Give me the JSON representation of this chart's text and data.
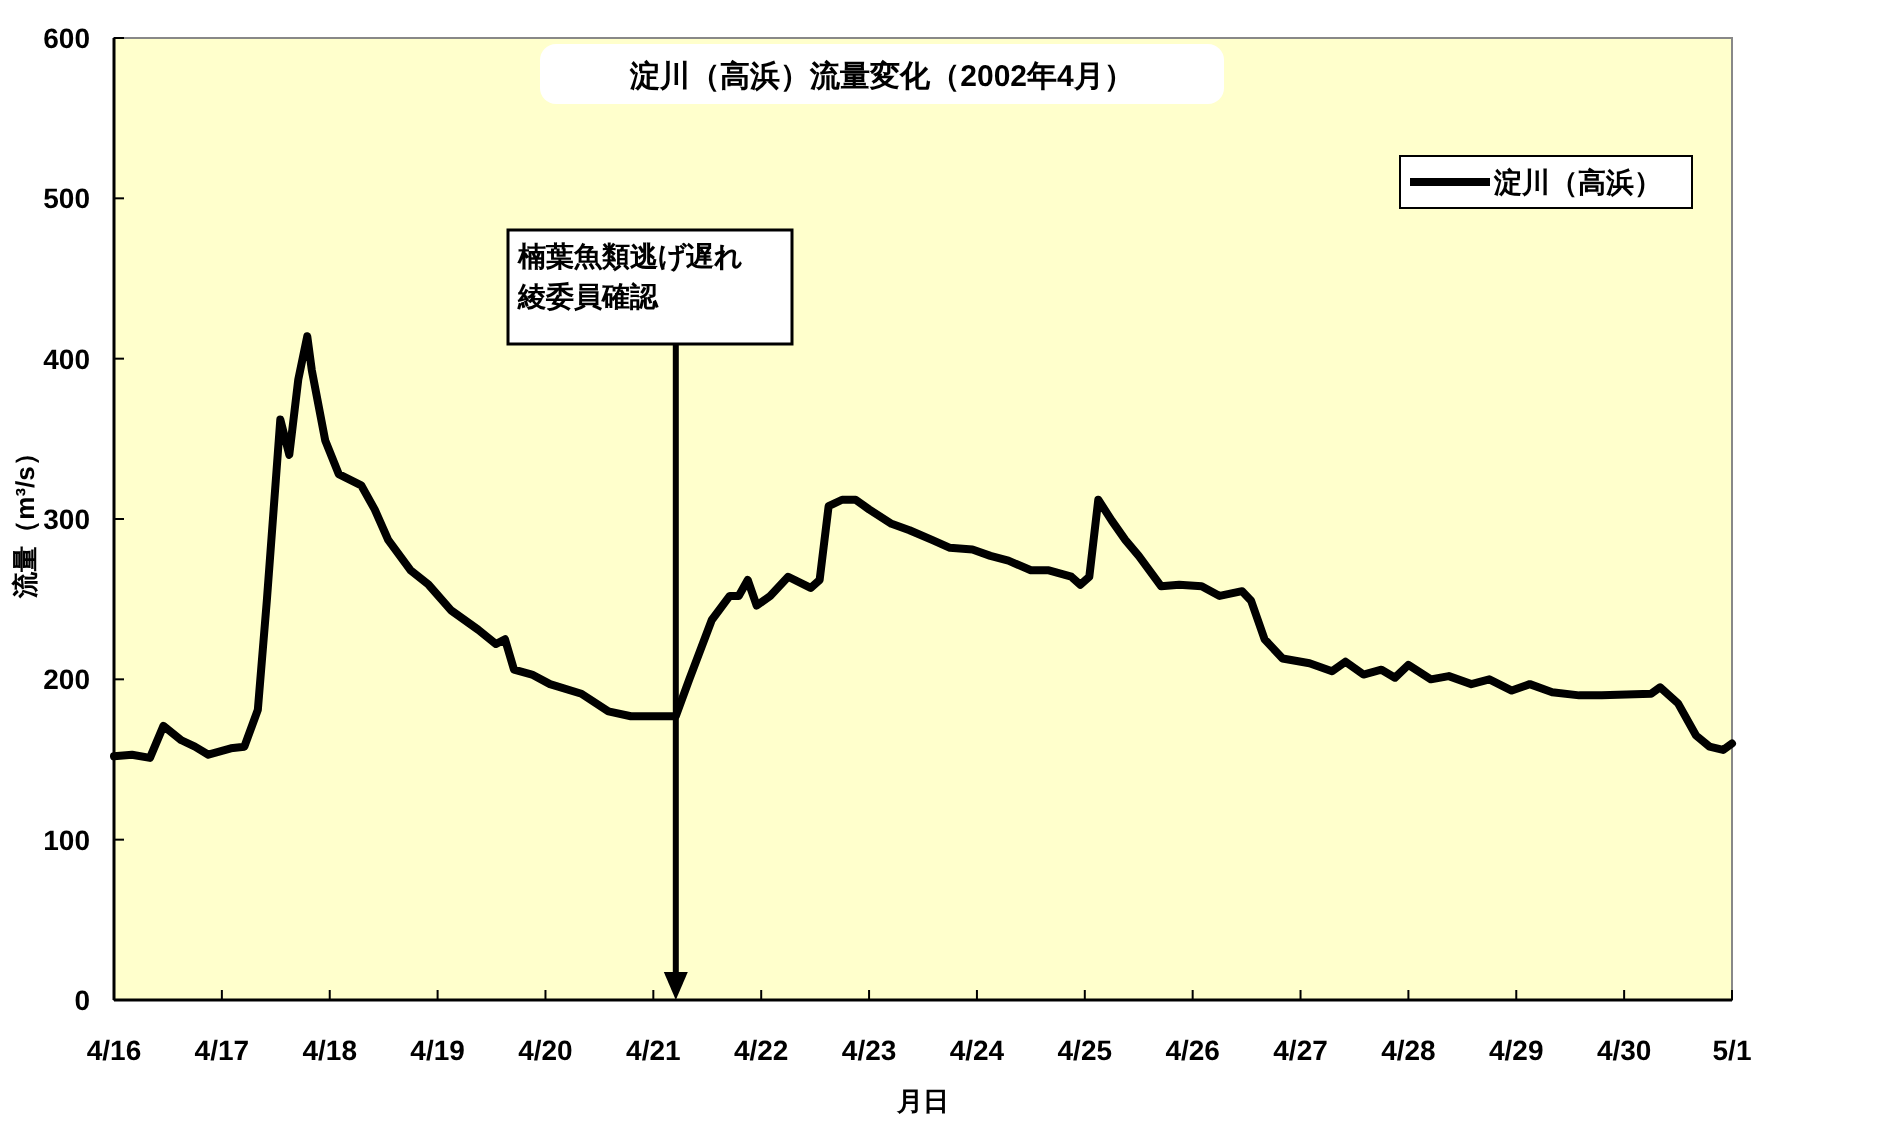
{
  "chart_data": {
    "type": "line",
    "title": "淀川（高浜）流量変化（2002年4月）",
    "xlabel": "月日",
    "ylabel": "流量（m³/s）",
    "x": [
      "2002-04-16T00:00",
      "2002-04-16T04:00",
      "2002-04-16T08:00",
      "2002-04-16T11:00",
      "2002-04-16T15:00",
      "2002-04-16T18:00",
      "2002-04-16T21:00",
      "2002-04-17T02:00",
      "2002-04-17T05:00",
      "2002-04-17T08:00",
      "2002-04-17T10:00",
      "2002-04-17T12:00",
      "2002-04-17T13:00",
      "2002-04-17T15:00",
      "2002-04-17T17:00",
      "2002-04-17T19:00",
      "2002-04-17T20:00",
      "2002-04-17T23:00",
      "2002-04-18T02:00",
      "2002-04-18T07:00",
      "2002-04-18T10:00",
      "2002-04-18T13:00",
      "2002-04-18T18:00",
      "2002-04-18T22:00",
      "2002-04-19T03:00",
      "2002-04-19T09:00",
      "2002-04-19T13:00",
      "2002-04-19T15:00",
      "2002-04-19T17:00",
      "2002-04-19T21:00",
      "2002-04-20T01:00",
      "2002-04-20T08:00",
      "2002-04-20T14:00",
      "2002-04-20T19:00",
      "2002-04-21T02:00",
      "2002-04-21T05:00",
      "2002-04-21T08:00",
      "2002-04-21T13:00",
      "2002-04-21T17:00",
      "2002-04-21T19:00",
      "2002-04-21T21:00",
      "2002-04-21T23:00",
      "2002-04-22T02:00",
      "2002-04-22T06:00",
      "2002-04-22T11:00",
      "2002-04-22T13:00",
      "2002-04-22T15:00",
      "2002-04-22T18:00",
      "2002-04-22T21:00",
      "2002-04-23T00:00",
      "2002-04-23T05:00",
      "2002-04-23T09:00",
      "2002-04-23T14:00",
      "2002-04-23T18:00",
      "2002-04-23T23:00",
      "2002-04-24T03:00",
      "2002-04-24T07:00",
      "2002-04-24T12:00",
      "2002-04-24T16:00",
      "2002-04-24T21:00",
      "2002-04-24T23:00",
      "2002-04-25T01:00",
      "2002-04-25T03:00",
      "2002-04-25T06:00",
      "2002-04-25T09:00",
      "2002-04-25T12:00",
      "2002-04-25T17:00",
      "2002-04-25T21:00",
      "2002-04-26T02:00",
      "2002-04-26T06:00",
      "2002-04-26T11:00",
      "2002-04-26T13:00",
      "2002-04-26T16:00",
      "2002-04-26T20:00",
      "2002-04-27T02:00",
      "2002-04-27T07:00",
      "2002-04-27T10:00",
      "2002-04-27T14:00",
      "2002-04-27T18:00",
      "2002-04-27T21:00",
      "2002-04-28T00:00",
      "2002-04-28T05:00",
      "2002-04-28T09:00",
      "2002-04-28T14:00",
      "2002-04-28T18:00",
      "2002-04-28T23:00",
      "2002-04-29T03:00",
      "2002-04-29T08:00",
      "2002-04-29T14:00",
      "2002-04-29T19:00",
      "2002-04-30T06:00",
      "2002-04-30T08:00",
      "2002-04-30T12:00",
      "2002-04-30T16:00",
      "2002-04-30T19:00",
      "2002-04-30T22:00",
      "2002-05-01T00:00"
    ],
    "series": [
      {
        "name": "淀川（高浜）",
        "color": "#000000",
        "values": [
          152,
          153,
          151,
          171,
          162,
          158,
          153,
          157,
          158,
          181,
          249,
          324,
          362,
          340,
          387,
          414,
          393,
          349,
          328,
          321,
          306,
          287,
          268,
          259,
          243,
          231,
          222,
          225,
          206,
          203,
          197,
          191,
          180,
          177,
          177,
          177,
          200,
          237,
          252,
          252,
          262,
          246,
          252,
          264,
          257,
          262,
          308,
          312,
          312,
          306,
          297,
          293,
          287,
          282,
          281,
          277,
          274,
          268,
          268,
          264,
          259,
          264,
          312,
          299,
          287,
          277,
          258,
          259,
          258,
          252,
          255,
          249,
          225,
          213,
          210,
          205,
          211,
          203,
          206,
          201,
          209,
          200,
          202,
          197,
          200,
          193,
          197,
          192,
          190,
          190,
          191,
          195,
          185,
          165,
          158,
          156,
          160
        ]
      }
    ],
    "xlim": [
      "2002-04-16",
      "2002-05-01"
    ],
    "xticks": [
      {
        "value": "2002-04-16",
        "label": "4/16"
      },
      {
        "value": "2002-04-17",
        "label": "4/17"
      },
      {
        "value": "2002-04-18",
        "label": "4/18"
      },
      {
        "value": "2002-04-19",
        "label": "4/19"
      },
      {
        "value": "2002-04-20",
        "label": "4/20"
      },
      {
        "value": "2002-04-21",
        "label": "4/21"
      },
      {
        "value": "2002-04-22",
        "label": "4/22"
      },
      {
        "value": "2002-04-23",
        "label": "4/23"
      },
      {
        "value": "2002-04-24",
        "label": "4/24"
      },
      {
        "value": "2002-04-25",
        "label": "4/25"
      },
      {
        "value": "2002-04-26",
        "label": "4/26"
      },
      {
        "value": "2002-04-27",
        "label": "4/27"
      },
      {
        "value": "2002-04-28",
        "label": "4/28"
      },
      {
        "value": "2002-04-29",
        "label": "4/29"
      },
      {
        "value": "2002-04-30",
        "label": "4/30"
      },
      {
        "value": "2002-05-01",
        "label": "5/1"
      }
    ],
    "ylim": [
      0,
      600
    ],
    "yticks": [
      0,
      100,
      200,
      300,
      400,
      500,
      600
    ],
    "ref_lines": [
      {
        "axis": "x",
        "value": "2002-04-21T05:00",
        "label": "楠葉魚類逃げ遅れ綾委員確認"
      }
    ],
    "grid": false,
    "legend": "top right",
    "marker": "none",
    "line_style": "solid"
  }
}
